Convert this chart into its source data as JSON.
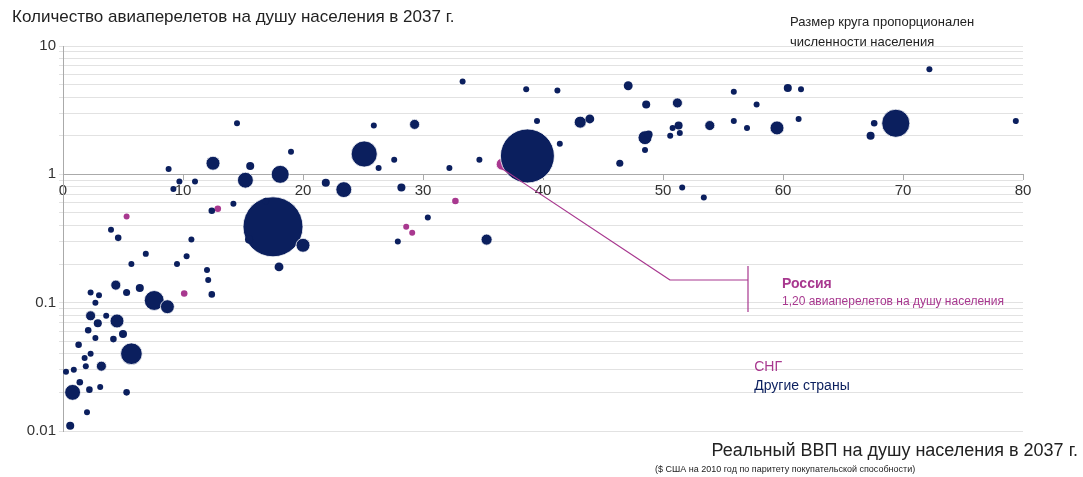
{
  "chart_data": {
    "type": "bubble",
    "ylabel": "Количество авиаперелетов на душу населения в 2037 г.",
    "xlabel": "Реальный ВВП на душу населения в 2037 г.",
    "annotations": [
      "Россия\n1,20 авиаперелетов на душу населения",
      "Размер круга пропорционален численности населения",
      "($ США на 2010 год по паритету покупательской способности)"
    ],
    "log": "y",
    "grid": "y",
    "legend": "bottom right",
    "marker": "circle",
    "xlim": [
      0,
      80
    ],
    "xticks": [
      0,
      10,
      20,
      30,
      40,
      50,
      60,
      70,
      80
    ],
    "ylim": [
      0.01,
      10
    ],
    "yticks": [
      0.01,
      {
        "value": 0.02,
        "label": null
      },
      {
        "value": 0.03,
        "label": null
      },
      {
        "value": 0.04,
        "label": null
      },
      {
        "value": 0.05,
        "label": null
      },
      {
        "value": 0.06,
        "label": null
      },
      {
        "value": 0.07,
        "label": null
      },
      {
        "value": 0.08,
        "label": null
      },
      {
        "value": 0.09,
        "label": null
      },
      0.1,
      {
        "value": 0.2,
        "label": null
      },
      {
        "value": 0.3,
        "label": null
      },
      {
        "value": 0.4,
        "label": null
      },
      {
        "value": 0.5,
        "label": null
      },
      {
        "value": 0.6,
        "label": null
      },
      {
        "value": 0.7,
        "label": null
      },
      {
        "value": 0.8,
        "label": null
      },
      {
        "value": 0.9,
        "label": null
      },
      1,
      {
        "value": 2,
        "label": null
      },
      {
        "value": 3,
        "label": null
      },
      {
        "value": 4,
        "label": null
      },
      {
        "value": 5,
        "label": null
      },
      {
        "value": 6,
        "label": null
      },
      {
        "value": 7,
        "label": null
      },
      {
        "value": 8,
        "label": null
      },
      {
        "value": 9,
        "label": null
      },
      10
    ],
    "series": [
      {
        "name": "СНГ",
        "color": "#a8388f",
        "x": [
          12.9,
          5.3,
          10.1,
          28.6,
          29.1,
          32.7,
          36.6
        ],
        "values": [
          0.54,
          0.47,
          0.118,
          0.39,
          0.35,
          0.62,
          1.2
        ],
        "sizes": [
          0.012,
          0.01,
          0.012,
          0.01,
          0.01,
          0.012,
          0.04
        ]
      },
      {
        "name": "Другие страны",
        "color": "#0b1f5e",
        "x": [
          12.5,
          15.6,
          15.2,
          8.8,
          9.7,
          11,
          9.2,
          12.4,
          14.2,
          4.0,
          4.6,
          10.7,
          6.9,
          9.5,
          10.3,
          5.7,
          12,
          12.1,
          12.4,
          4.4,
          5.3,
          6.4,
          7.6,
          8.7,
          2.3,
          3.0,
          2.7,
          2.3,
          2.9,
          3.6,
          4.5,
          2.1,
          5.0,
          4.2,
          2.7,
          1.3,
          5.7,
          1.8,
          2.3,
          1.9,
          3.2,
          0.25,
          0.9,
          1.4,
          2.2,
          3.1,
          0.8,
          5.3,
          2.0,
          0.6,
          14.5,
          18.1,
          19,
          21.9,
          23.4,
          25.1,
          25.9,
          27.6,
          26.3,
          28.2,
          29.3,
          30.4,
          27.9,
          17.5,
          15.5,
          20,
          18,
          16.9,
          33.3,
          38.6,
          41.2,
          39.5,
          43.1,
          43.9,
          47.1,
          48.6,
          51.2,
          51.3,
          50.8,
          51.4,
          50.6,
          48.5,
          48.8,
          48.5,
          46.4,
          41.4,
          38.7,
          32.2,
          34.7,
          35.3,
          51.6,
          72.2,
          60.4,
          61.5,
          55.9,
          57.8,
          53.9,
          55.9,
          57,
          59.5,
          61.3,
          67.6,
          67.3,
          69.4,
          79.4,
          53.4
        ],
        "values": [
          1.22,
          1.16,
          0.9,
          1.1,
          0.88,
          0.88,
          0.77,
          0.52,
          0.59,
          0.37,
          0.32,
          0.31,
          0.24,
          0.2,
          0.23,
          0.2,
          0.18,
          0.15,
          0.116,
          0.137,
          0.12,
          0.13,
          0.104,
          0.093,
          0.12,
          0.114,
          0.1,
          0.079,
          0.069,
          0.079,
          0.072,
          0.061,
          0.057,
          0.052,
          0.053,
          0.047,
          0.04,
          0.037,
          0.04,
          0.032,
          0.032,
          0.029,
          0.03,
          0.024,
          0.021,
          0.022,
          0.02,
          0.02,
          0.014,
          0.011,
          2.5,
          1.0,
          1.5,
          0.86,
          0.76,
          1.44,
          2.4,
          1.3,
          1.12,
          0.79,
          2.45,
          0.46,
          0.3,
          0.39,
          0.31,
          0.28,
          0.19,
          0.62,
          5.3,
          4.6,
          4.5,
          2.6,
          2.55,
          2.7,
          4.9,
          3.5,
          3.6,
          2.4,
          2.3,
          2.1,
          2.0,
          1.93,
          2.04,
          1.55,
          1.22,
          1.73,
          1.39,
          1.12,
          1.3,
          0.31,
          0.79,
          6.6,
          4.7,
          4.6,
          4.4,
          3.5,
          2.4,
          2.6,
          2.3,
          2.3,
          2.7,
          2.5,
          2.0,
          2.5,
          2.6,
          0.66
        ],
        "sizes": [
          0.054,
          0.018,
          0.07,
          0.01,
          0.01,
          0.01,
          0.01,
          0.012,
          0.01,
          0.01,
          0.012,
          0.01,
          0.01,
          0.01,
          0.01,
          0.01,
          0.01,
          0.01,
          0.012,
          0.028,
          0.014,
          0.018,
          0.11,
          0.054,
          0.01,
          0.01,
          0.01,
          0.028,
          0.018,
          0.01,
          0.054,
          0.012,
          0.018,
          0.012,
          0.01,
          0.012,
          0.13,
          0.01,
          0.01,
          0.01,
          0.028,
          0.01,
          0.01,
          0.012,
          0.012,
          0.01,
          0.07,
          0.012,
          0.01,
          0.018,
          0.01,
          0.09,
          0.01,
          0.018,
          0.07,
          0.19,
          0.01,
          0.01,
          0.01,
          0.018,
          0.028,
          0.01,
          0.01,
          1,
          0.018,
          0.054,
          0.022,
          0.012,
          0.01,
          0.01,
          0.01,
          0.01,
          0.04,
          0.022,
          0.022,
          0.018,
          0.028,
          0.018,
          0.01,
          0.01,
          0.01,
          0.054,
          0.018,
          0.01,
          0.014,
          0.01,
          0.81,
          0.01,
          0.01,
          0.034,
          0.01,
          0.01,
          0.018,
          0.01,
          0.01,
          0.01,
          0.028,
          0.01,
          0.01,
          0.054,
          0.01,
          0.012,
          0.018,
          0.22,
          0.01,
          0.01
        ]
      }
    ]
  }
}
